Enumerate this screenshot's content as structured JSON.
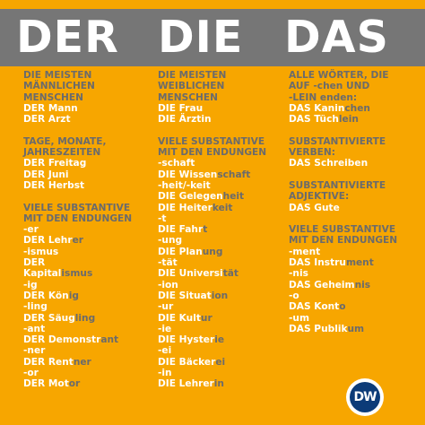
{
  "title": {
    "der": "DER",
    "die": "DIE",
    "das": "DAS"
  },
  "columns": [
    {
      "id": "der",
      "lines": [
        {
          "t": "h",
          "text": "DIE MEISTEN"
        },
        {
          "t": "h",
          "text": "MÄNNLICHEN"
        },
        {
          "t": "h",
          "text": "MENSCHEN"
        },
        {
          "t": "w",
          "text": "DER Mann"
        },
        {
          "t": "w",
          "text": "DER Arzt"
        },
        {
          "t": "gap"
        },
        {
          "t": "h",
          "text": "TAGE, MONATE,"
        },
        {
          "t": "h",
          "text": "JAHRESZEITEN"
        },
        {
          "t": "w",
          "text": "DER Freitag"
        },
        {
          "t": "w",
          "text": "DER Juni"
        },
        {
          "t": "w",
          "text": "DER Herbst"
        },
        {
          "t": "gap"
        },
        {
          "t": "h",
          "text": "VIELE SUBSTANTIVE"
        },
        {
          "t": "h",
          "text": "MIT DEN ENDUNGEN"
        },
        {
          "t": "w",
          "text": "-er"
        },
        {
          "t": "w",
          "text": "DER Lehr",
          "suffix": "er"
        },
        {
          "t": "w",
          "text": "-ismus"
        },
        {
          "t": "w",
          "text": "DER"
        },
        {
          "t": "w",
          "text": "Kapital",
          "suffix": "ismus"
        },
        {
          "t": "w",
          "text": "-ig"
        },
        {
          "t": "w",
          "text": "DER Kön",
          "suffix": "ig"
        },
        {
          "t": "w",
          "text": "-ling"
        },
        {
          "t": "w",
          "text": "DER Säug",
          "suffix": "ling"
        },
        {
          "t": "w",
          "text": "-ant"
        },
        {
          "t": "w",
          "text": "DER Demonstr",
          "suffix": "ant"
        },
        {
          "t": "w",
          "text": "-ner"
        },
        {
          "t": "w",
          "text": "DER Rent",
          "suffix": "ner"
        },
        {
          "t": "w",
          "text": "-or"
        },
        {
          "t": "w",
          "text": "DER Mot",
          "suffix": "or"
        }
      ]
    },
    {
      "id": "die",
      "lines": [
        {
          "t": "h",
          "text": "DIE MEISTEN"
        },
        {
          "t": "h",
          "text": "WEIBLICHEN"
        },
        {
          "t": "h",
          "text": "MENSCHEN"
        },
        {
          "t": "w",
          "text": "DIE Frau"
        },
        {
          "t": "w",
          "text": "DIE Ärztin"
        },
        {
          "t": "gap"
        },
        {
          "t": "h",
          "text": "VIELE SUBSTANTIVE"
        },
        {
          "t": "h",
          "text": "MIT DEN ENDUNGEN"
        },
        {
          "t": "w",
          "text": "-schaft"
        },
        {
          "t": "w",
          "text": "DIE Wissen",
          "suffix": "schaft"
        },
        {
          "t": "w",
          "text": "-heit/-keit"
        },
        {
          "t": "w",
          "text": "DIE Gelegen",
          "suffix": "heit"
        },
        {
          "t": "w",
          "text": "DIE Heiter",
          "suffix": "keit"
        },
        {
          "t": "w",
          "text": "-t"
        },
        {
          "t": "w",
          "text": "DIE Fahr",
          "suffix": "t"
        },
        {
          "t": "w",
          "text": "-ung"
        },
        {
          "t": "w",
          "text": "DIE Plan",
          "suffix": "ung"
        },
        {
          "t": "w",
          "text": "-tät"
        },
        {
          "t": "w",
          "text": "DIE Universi",
          "suffix": "tät"
        },
        {
          "t": "w",
          "text": "-ion"
        },
        {
          "t": "w",
          "text": "DIE Situat",
          "suffix": "ion"
        },
        {
          "t": "w",
          "text": "-ur"
        },
        {
          "t": "w",
          "text": "DIE Kult",
          "suffix": "ur"
        },
        {
          "t": "w",
          "text": "-ie"
        },
        {
          "t": "w",
          "text": "DIE Hyster",
          "suffix": "ie"
        },
        {
          "t": "w",
          "text": "-ei"
        },
        {
          "t": "w",
          "text": "DIE Bäcker",
          "suffix": "ei"
        },
        {
          "t": "w",
          "text": "-in"
        },
        {
          "t": "w",
          "text": "DIE Lehrer",
          "suffix": "in"
        }
      ]
    },
    {
      "id": "das",
      "lines": [
        {
          "t": "h",
          "text": "ALLE WÖRTER, DIE"
        },
        {
          "t": "h",
          "text": "AUF -chen UND"
        },
        {
          "t": "h",
          "text": "-LEIN enden:"
        },
        {
          "t": "w",
          "text": "DAS Kanin",
          "suffix": "chen"
        },
        {
          "t": "w",
          "text": "DAS Tüch",
          "suffix": "lein"
        },
        {
          "t": "gap"
        },
        {
          "t": "h",
          "text": "SUBSTANTIVIERTE"
        },
        {
          "t": "h",
          "text": "VERBEN:"
        },
        {
          "t": "w",
          "text": "DAS Schreiben"
        },
        {
          "t": "gap"
        },
        {
          "t": "h",
          "text": "SUBSTANTIVIERTE"
        },
        {
          "t": "h",
          "text": "ADJEKTIVE:"
        },
        {
          "t": "w",
          "text": "DAS Gute"
        },
        {
          "t": "gap"
        },
        {
          "t": "h",
          "text": "VIELE SUBSTANTIVE"
        },
        {
          "t": "h",
          "text": "MIT DEN ENDUNGEN"
        },
        {
          "t": "w",
          "text": "-ment"
        },
        {
          "t": "w",
          "text": "DAS Instru",
          "suffix": "ment"
        },
        {
          "t": "w",
          "text": "-nis"
        },
        {
          "t": "w",
          "text": "DAS Geheim",
          "suffix": "nis"
        },
        {
          "t": "w",
          "text": "-o"
        },
        {
          "t": "w",
          "text": "DAS Kont",
          "suffix": "o"
        },
        {
          "t": "w",
          "text": "-um"
        },
        {
          "t": "w",
          "text": "DAS Publik",
          "suffix": "um"
        }
      ]
    }
  ],
  "logo": {
    "text": "DW"
  },
  "colors": {
    "background": "#f7a600",
    "header": "#767676",
    "heading_text": "#6b6b6b",
    "word_text": "#ffffff",
    "logo": "#0c3b78"
  }
}
